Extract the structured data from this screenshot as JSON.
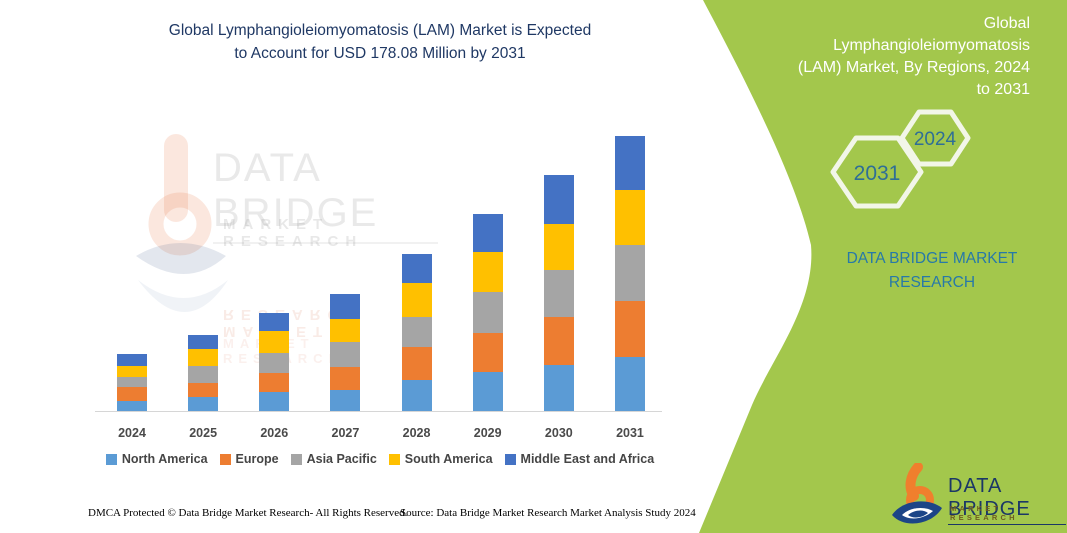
{
  "header": {
    "title_line1": "Global Lymphangioleiomyomatosis (LAM) Market is Expected",
    "title_line2": "to Account for USD 178.08 Million by 2031"
  },
  "side_panel": {
    "title_lines": [
      "Global",
      "Lymphangioleiomyomatosis",
      "(LAM) Market, By Regions, 2024",
      "to 2031"
    ],
    "hex_large_year": "2031",
    "hex_small_year": "2024",
    "brand_line1": "DATA BRIDGE MARKET",
    "brand_line2": "RESEARCH"
  },
  "watermark": {
    "title": "DATA BRIDGE",
    "subtitle": "MARKET RESEARCH"
  },
  "footer": {
    "left": "DMCA Protected © Data Bridge Market Research-  All Rights Reserved.",
    "source": "Source: Data Bridge Market Research  Market Analysis Study 2024"
  },
  "logo": {
    "name": "DATA BRIDGE",
    "tagline": "MARKET RESEARCH"
  },
  "colors": {
    "panel-green": "#A3C74C",
    "title-navy": "#1F3864",
    "hex-text": "#2E6E96",
    "hex-stroke": "#F2F6E8",
    "brand-teal": "#2779A8",
    "axis-gray": "#D6D6D6",
    "label-gray": "#4A4A4A",
    "legend-text": "#454545",
    "footer-ink": "#000000",
    "logo-navy": "#1B3766",
    "logo-gold": "#6F5D20",
    "logo-orange": "#F07F2D",
    "logo-blue": "#1C4587"
  },
  "chart_data": {
    "type": "bar",
    "stacked": true,
    "unit": "USD Million",
    "title": "Global Lymphangioleiomyomatosis (LAM) Market is Expected to Account for USD 178.08 Million by 2031",
    "xlabel": "",
    "ylabel": "",
    "grid": false,
    "y_axis_visible": false,
    "legend_position": "bottom",
    "categories": [
      "2024",
      "2025",
      "2026",
      "2027",
      "2028",
      "2029",
      "2030",
      "2031"
    ],
    "series": [
      {
        "name": "North America",
        "color": "#5B9BD5",
        "values": [
          6.9,
          9.6,
          12.7,
          14.3,
          21.0,
          25.6,
          30.4,
          35.8
        ]
      },
      {
        "name": "Europe",
        "color": "#ED7D31",
        "values": [
          9.0,
          9.0,
          12.4,
          14.6,
          20.8,
          25.1,
          31.1,
          35.8
        ]
      },
      {
        "name": "Asia Pacific",
        "color": "#A5A5A5",
        "values": [
          6.9,
          11.1,
          13.3,
          16.5,
          19.8,
          26.6,
          30.0,
          36.0
        ]
      },
      {
        "name": "South America",
        "color": "#FFC000",
        "values": [
          7.1,
          10.9,
          14.1,
          14.3,
          21.4,
          25.7,
          30.1,
          35.4
        ]
      },
      {
        "name": "Middle East and Africa",
        "color": "#4472C4",
        "values": [
          7.7,
          9.0,
          11.1,
          16.3,
          19.1,
          24.7,
          31.3,
          35.08
        ]
      }
    ],
    "totals": [
      37.6,
      49.6,
      63.6,
      76.0,
      102.1,
      127.7,
      152.9,
      178.08
    ]
  }
}
